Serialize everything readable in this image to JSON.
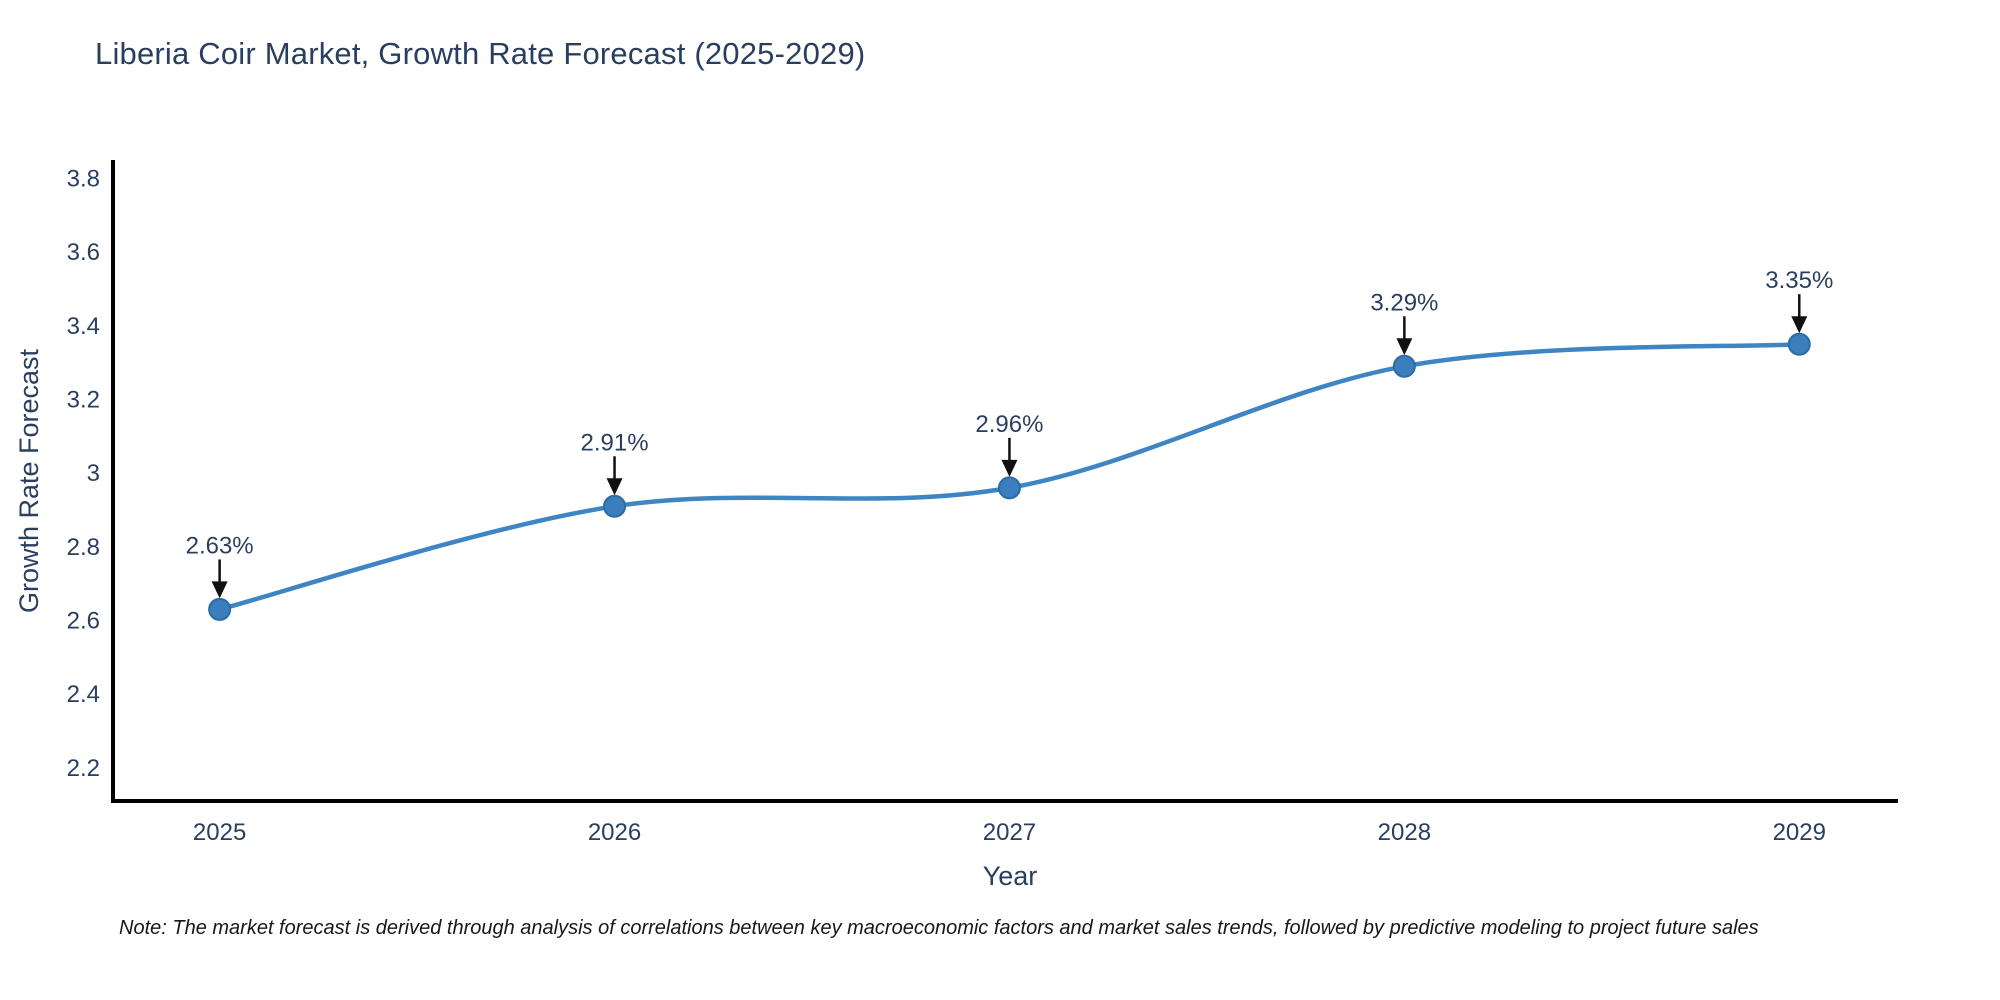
{
  "title": "Liberia Coir Market, Growth Rate Forecast (2025-2029)",
  "note": "Note: The market forecast is derived through analysis of correlations between key macroeconomic factors and market sales trends, followed by predictive modeling to project future sales",
  "chart_data": {
    "type": "line",
    "title": "Liberia Coir Market, Growth Rate Forecast (2025-2029)",
    "xlabel": "Year",
    "ylabel": "Growth Rate Forecast",
    "x": [
      2025,
      2026,
      2027,
      2028,
      2029
    ],
    "series": [
      {
        "name": "Growth Rate Forecast",
        "values": [
          2.63,
          2.91,
          2.96,
          3.29,
          3.35
        ]
      }
    ],
    "point_labels": [
      "2.63%",
      "2.91%",
      "2.96%",
      "3.29%",
      "3.35%"
    ],
    "xticks": [
      2025,
      2026,
      2027,
      2028,
      2029
    ],
    "yticks": [
      2.2,
      2.4,
      2.6,
      2.8,
      3,
      3.2,
      3.4,
      3.6,
      3.8
    ],
    "xlim": [
      2024.73,
      2029.25
    ],
    "ylim": [
      2.11,
      3.85
    ],
    "grid": false,
    "legend": "none",
    "line_shape": "spline",
    "line_color": "#3f85c4",
    "marker_color": "#3a7ebd",
    "marker_edge_color": "#2b6ca3",
    "axis_line_color": "#000000",
    "arrow_color": "#111111",
    "text_color": "#2a3f5f"
  }
}
